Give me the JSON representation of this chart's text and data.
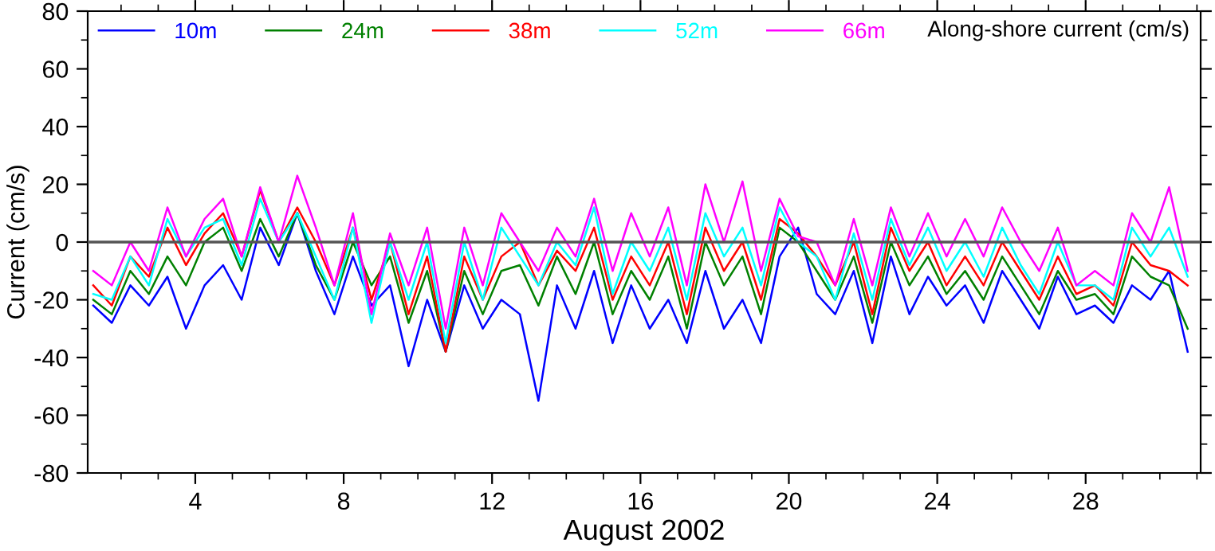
{
  "chart_data": {
    "type": "line",
    "title": null,
    "xlabel": "August 2002",
    "ylabel": "Current (cm/s)",
    "annotations": [
      "Along-shore current (cm/s)"
    ],
    "x": [
      1.25,
      1.75,
      2.25,
      2.75,
      3.25,
      3.75,
      4.25,
      4.75,
      5.25,
      5.75,
      6.25,
      6.75,
      7.25,
      7.75,
      8.25,
      8.75,
      9.25,
      9.75,
      10.25,
      10.75,
      11.25,
      11.75,
      12.25,
      12.75,
      13.25,
      13.75,
      14.25,
      14.75,
      15.25,
      15.75,
      16.25,
      16.75,
      17.25,
      17.75,
      18.25,
      18.75,
      19.25,
      19.75,
      20.25,
      20.75,
      21.25,
      21.75,
      22.25,
      22.75,
      23.25,
      23.75,
      24.25,
      24.75,
      25.25,
      25.75,
      26.25,
      26.75,
      27.25,
      27.75,
      28.25,
      28.75,
      29.25,
      29.75,
      30.25,
      30.75
    ],
    "series": [
      {
        "name": "10m",
        "color": "#0000ff",
        "values": [
          -22,
          -28,
          -15,
          -22,
          -12,
          -30,
          -15,
          -8,
          -20,
          5,
          -8,
          10,
          -10,
          -25,
          -5,
          -22,
          -15,
          -43,
          -20,
          -38,
          -15,
          -30,
          -20,
          -25,
          -55,
          -15,
          -30,
          -10,
          -35,
          -15,
          -30,
          -20,
          -35,
          -10,
          -30,
          -20,
          -35,
          -5,
          5,
          -18,
          -25,
          -10,
          -35,
          -5,
          -25,
          -12,
          -22,
          -15,
          -28,
          -10,
          -20,
          -30,
          -12,
          -25,
          -22,
          -28,
          -15,
          -20,
          -10,
          -38
        ]
      },
      {
        "name": "24m",
        "color": "#008000",
        "values": [
          -20,
          -25,
          -10,
          -18,
          -5,
          -15,
          0,
          5,
          -10,
          8,
          -5,
          10,
          -8,
          -20,
          0,
          -15,
          -5,
          -28,
          -10,
          -38,
          -10,
          -25,
          -10,
          -8,
          -22,
          -5,
          -18,
          0,
          -25,
          -10,
          -20,
          -5,
          -30,
          0,
          -15,
          -5,
          -25,
          5,
          0,
          -10,
          -20,
          -5,
          -28,
          0,
          -15,
          -5,
          -18,
          -10,
          -20,
          -5,
          -15,
          -25,
          -10,
          -20,
          -18,
          -25,
          -5,
          -12,
          -15,
          -30
        ]
      },
      {
        "name": "38m",
        "color": "#ff0000",
        "values": [
          -15,
          -22,
          -5,
          -12,
          5,
          -8,
          3,
          10,
          -5,
          18,
          0,
          12,
          0,
          -15,
          5,
          -20,
          0,
          -25,
          -5,
          -38,
          -5,
          -20,
          -5,
          0,
          -15,
          -3,
          -10,
          5,
          -20,
          -5,
          -15,
          0,
          -25,
          5,
          -10,
          0,
          -20,
          8,
          3,
          -5,
          -15,
          0,
          -25,
          5,
          -10,
          0,
          -15,
          -5,
          -15,
          0,
          -10,
          -20,
          -5,
          -18,
          -15,
          -22,
          0,
          -8,
          -10,
          -15
        ]
      },
      {
        "name": "52m",
        "color": "#00ffff",
        "values": [
          -18,
          -20,
          -5,
          -15,
          8,
          -5,
          5,
          8,
          -8,
          15,
          0,
          10,
          -5,
          -20,
          5,
          -28,
          0,
          -20,
          0,
          -35,
          0,
          -20,
          5,
          -5,
          -15,
          0,
          -8,
          12,
          -18,
          0,
          -10,
          5,
          -20,
          10,
          -5,
          5,
          -15,
          12,
          0,
          -5,
          -20,
          3,
          -20,
          8,
          -8,
          5,
          -10,
          0,
          -12,
          5,
          -8,
          -18,
          0,
          -15,
          -15,
          -20,
          5,
          -5,
          5,
          -12
        ]
      },
      {
        "name": "66m",
        "color": "#ff00ff",
        "values": [
          -10,
          -15,
          0,
          -10,
          12,
          -5,
          8,
          15,
          -5,
          19,
          0,
          23,
          5,
          -15,
          10,
          -25,
          3,
          -15,
          5,
          -30,
          5,
          -15,
          10,
          0,
          -10,
          5,
          -5,
          15,
          -10,
          10,
          -5,
          12,
          -15,
          20,
          0,
          21,
          -10,
          15,
          2,
          0,
          -15,
          8,
          -15,
          12,
          -5,
          10,
          -5,
          8,
          -5,
          12,
          0,
          -10,
          5,
          -15,
          -10,
          -15,
          10,
          0,
          19,
          -10
        ]
      }
    ],
    "xlim": [
      1.1,
      31.1
    ],
    "xticks": [
      4,
      8,
      12,
      16,
      20,
      24,
      28
    ],
    "ylim": [
      -80,
      80
    ],
    "yticks": [
      -80,
      -60,
      -40,
      -20,
      0,
      20,
      40,
      60,
      80
    ],
    "ref_lines": [
      {
        "axis": "y",
        "value": 0,
        "color": "#555555"
      }
    ],
    "grid": false,
    "legend": "top left",
    "marker": "none",
    "line_style": "solid"
  }
}
